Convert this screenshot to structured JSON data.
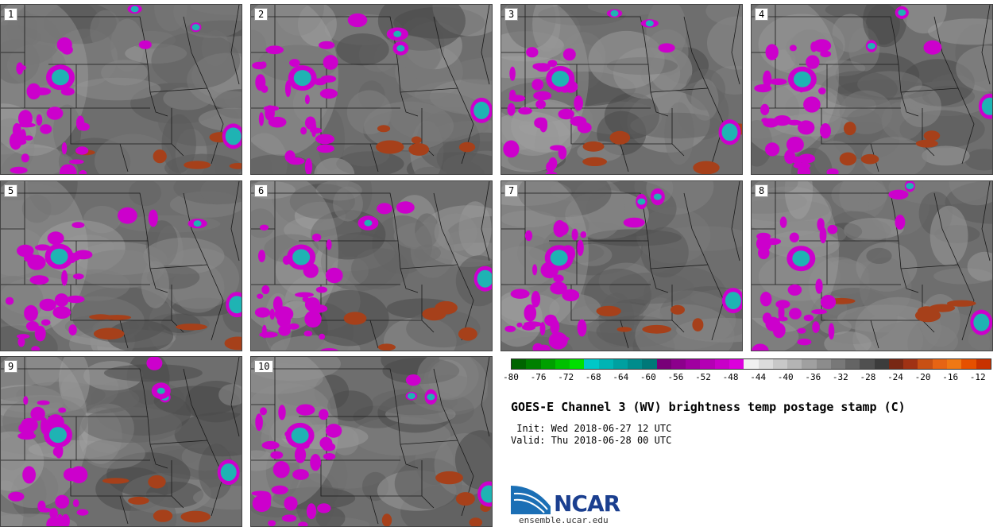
{
  "panels": [
    {
      "label": "1"
    },
    {
      "label": "2"
    },
    {
      "label": "3"
    },
    {
      "label": "4"
    },
    {
      "label": "5"
    },
    {
      "label": "6"
    },
    {
      "label": "7"
    },
    {
      "label": "8"
    },
    {
      "label": "9"
    },
    {
      "label": "10"
    }
  ],
  "colorbar": {
    "colors": [
      "#006400",
      "#008000",
      "#00a000",
      "#00c000",
      "#00e000",
      "#00c8c8",
      "#00b4b4",
      "#00a0a0",
      "#008c8c",
      "#007878",
      "#780078",
      "#8c008c",
      "#a000a0",
      "#b400b4",
      "#c800c8",
      "#dc00dc",
      "#f0f0f0",
      "#dcdcdc",
      "#c8c8c8",
      "#b4b4b4",
      "#a0a0a0",
      "#8c8c8c",
      "#787878",
      "#646464",
      "#505050",
      "#3c3c3c",
      "#782814",
      "#a03214",
      "#c85014",
      "#e66414",
      "#f07814",
      "#e65000",
      "#c83200"
    ],
    "ticks": [
      "-80",
      "-76",
      "-72",
      "-68",
      "-64",
      "-60",
      "-56",
      "-52",
      "-48",
      "-44",
      "-40",
      "-36",
      "-32",
      "-28",
      "-24",
      "-20",
      "-16",
      "-12"
    ],
    "min": -80,
    "max": -10
  },
  "title": "GOES-E Channel 3 (WV) brightness temp postage stamp (C)",
  "init": " Init: Wed 2018-06-27 12 UTC",
  "valid": "Valid: Thu 2018-06-28 00 UTC",
  "logo": {
    "text": "NCAR",
    "site": "ensemble.ucar.edu",
    "color": "#1b3f8f"
  },
  "colors": {
    "magenta": "#cc00cc",
    "cyan": "#1fb3b3",
    "rust": "#a6401a",
    "gray": "#6e6e6e"
  }
}
